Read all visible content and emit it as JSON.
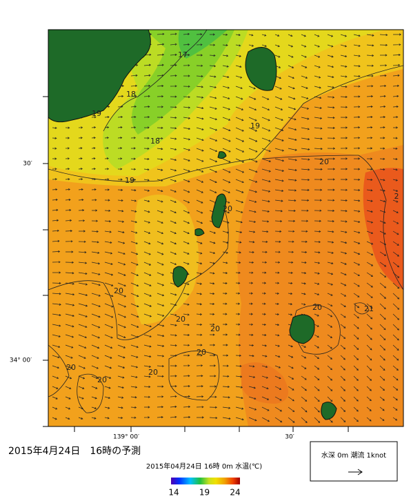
{
  "title": "2015年4月24日　16時の予測",
  "subtitle": "2015年04月24日 16時 0m 水温(℃)",
  "colorbar": {
    "ticks": [
      14,
      19,
      24
    ]
  },
  "axes": {
    "left": [
      "30′",
      "34° 00′"
    ],
    "bottom": [
      "139° 00′",
      "30′"
    ]
  },
  "legend": {
    "text": "水深 0m 潮流 1knot"
  },
  "contour_labels": [
    "17",
    "18",
    "18",
    "19",
    "19",
    "19",
    "20",
    "20",
    "2",
    "20",
    "20",
    "20",
    "20",
    "21",
    "20",
    "20",
    "20",
    "20"
  ]
}
